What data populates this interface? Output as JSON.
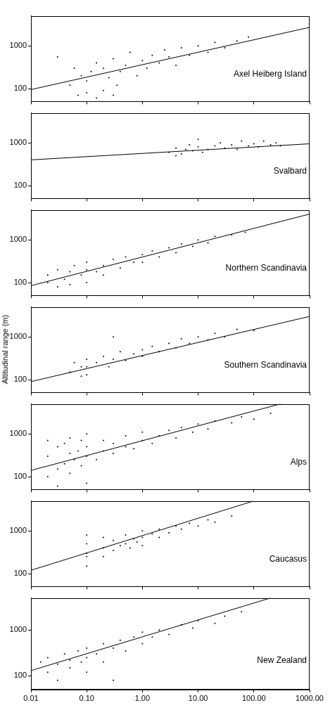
{
  "chart_data": [
    {
      "type": "scatter",
      "annotations": [
        "Axel Heiberg Island"
      ],
      "log": true,
      "grid": false,
      "tick_labels": "y",
      "xlim": [
        0.01,
        1000
      ],
      "ylim": [
        50,
        5000
      ],
      "xticks": [
        0.01,
        {
          "value": 0.1,
          "label": "0.10"
        },
        {
          "value": 1,
          "label": "1.00"
        },
        {
          "value": 10,
          "label": "10.00"
        },
        {
          "value": 100,
          "label": "100.00"
        },
        {
          "value": 1000,
          "label": "1000.00"
        }
      ],
      "yticks": [
        100,
        1000
      ],
      "series": [
        {
          "type": "scatter",
          "marker": "dot",
          "color": "#000000",
          "x": [
            0.03,
            0.05,
            0.06,
            0.08,
            0.1,
            0.1,
            0.12,
            0.15,
            0.2,
            0.2,
            0.25,
            0.3,
            0.35,
            0.4,
            0.5,
            0.6,
            0.8,
            1,
            1.2,
            1.5,
            2,
            2.5,
            3,
            4,
            5,
            7,
            10,
            15,
            20,
            30,
            50,
            80,
            0.07,
            0.3,
            0.15
          ],
          "values": [
            550,
            120,
            300,
            200,
            80,
            150,
            250,
            400,
            90,
            300,
            180,
            500,
            120,
            250,
            350,
            700,
            200,
            450,
            300,
            600,
            400,
            800,
            550,
            350,
            900,
            600,
            1000,
            700,
            1200,
            900,
            1300,
            1600,
            70,
            70,
            60
          ]
        },
        {
          "type": "line",
          "line_style": "solid",
          "color": "#000000",
          "x": [
            0.01,
            1000
          ],
          "values": [
            95,
            2700
          ]
        }
      ]
    },
    {
      "type": "scatter",
      "annotations": [
        "Svalbard"
      ],
      "log": true,
      "grid": false,
      "tick_labels": "y",
      "xlim": [
        0.01,
        1000
      ],
      "ylim": [
        50,
        5000
      ],
      "xticks": [
        0.01,
        {
          "value": 0.1,
          "label": "0.10"
        },
        {
          "value": 1,
          "label": "1.00"
        },
        {
          "value": 10,
          "label": "10.00"
        },
        {
          "value": 100,
          "label": "100.00"
        },
        {
          "value": 1000,
          "label": "1000.00"
        }
      ],
      "yticks": [
        100,
        1000
      ],
      "series": [
        {
          "type": "scatter",
          "marker": "dot",
          "color": "#000000",
          "x": [
            3,
            4,
            5,
            6,
            7,
            8,
            10,
            12,
            15,
            20,
            25,
            30,
            40,
            50,
            60,
            80,
            100,
            120,
            150,
            200,
            250,
            300,
            4,
            10
          ],
          "values": [
            600,
            750,
            550,
            700,
            900,
            650,
            800,
            600,
            700,
            850,
            1000,
            750,
            900,
            700,
            1100,
            850,
            950,
            800,
            1100,
            900,
            1000,
            850,
            500,
            1200
          ]
        },
        {
          "type": "line",
          "line_style": "solid",
          "color": "#000000",
          "x": [
            0.01,
            1000
          ],
          "values": [
            400,
            950
          ]
        }
      ]
    },
    {
      "type": "scatter",
      "annotations": [
        "Northern Scandinavia"
      ],
      "log": true,
      "grid": false,
      "tick_labels": "y",
      "xlim": [
        0.01,
        1000
      ],
      "ylim": [
        50,
        5000
      ],
      "xticks": [
        0.01,
        {
          "value": 0.1,
          "label": "0.10"
        },
        {
          "value": 1,
          "label": "1.00"
        },
        {
          "value": 10,
          "label": "10.00"
        },
        {
          "value": 100,
          "label": "100.00"
        },
        {
          "value": 1000,
          "label": "1000.00"
        }
      ],
      "yticks": [
        100,
        1000
      ],
      "series": [
        {
          "type": "scatter",
          "marker": "dot",
          "color": "#000000",
          "x": [
            0.02,
            0.02,
            0.03,
            0.03,
            0.04,
            0.05,
            0.05,
            0.06,
            0.08,
            0.1,
            0.1,
            0.1,
            0.15,
            0.2,
            0.2,
            0.3,
            0.4,
            0.5,
            0.7,
            1,
            1,
            1.5,
            2,
            3,
            4,
            5,
            8,
            10,
            15,
            20,
            40,
            70
          ],
          "values": [
            100,
            150,
            80,
            200,
            120,
            90,
            180,
            250,
            150,
            100,
            200,
            300,
            180,
            250,
            150,
            350,
            220,
            400,
            300,
            450,
            300,
            550,
            400,
            650,
            500,
            800,
            700,
            1000,
            850,
            1200,
            1300,
            1500
          ]
        },
        {
          "type": "line",
          "line_style": "solid",
          "color": "#000000",
          "x": [
            0.01,
            1000
          ],
          "values": [
            85,
            4000
          ]
        }
      ]
    },
    {
      "type": "scatter",
      "annotations": [
        "Southern Scandinavia"
      ],
      "y_label": "Altitudinal range (m)",
      "log": true,
      "grid": false,
      "tick_labels": "y",
      "xlim": [
        0.01,
        1000
      ],
      "ylim": [
        50,
        5000
      ],
      "xticks": [
        0.01,
        {
          "value": 0.1,
          "label": "0.10"
        },
        {
          "value": 1,
          "label": "1.00"
        },
        {
          "value": 10,
          "label": "10.00"
        },
        {
          "value": 100,
          "label": "100.00"
        },
        {
          "value": 1000,
          "label": "1000.00"
        }
      ],
      "yticks": [
        100,
        1000
      ],
      "series": [
        {
          "type": "scatter",
          "marker": "dot",
          "color": "#000000",
          "x": [
            0.05,
            0.06,
            0.08,
            0.1,
            0.1,
            0.1,
            0.15,
            0.2,
            0.25,
            0.3,
            0.4,
            0.5,
            0.7,
            1,
            1,
            1.5,
            2,
            3,
            4,
            5,
            7,
            10,
            15,
            20,
            30,
            50,
            100,
            0.3,
            0.08
          ],
          "values": [
            150,
            250,
            120,
            200,
            300,
            130,
            250,
            350,
            200,
            300,
            450,
            280,
            400,
            500,
            350,
            600,
            450,
            700,
            550,
            900,
            700,
            1000,
            850,
            1200,
            1000,
            1500,
            1400,
            1000,
            200
          ]
        },
        {
          "type": "line",
          "line_style": "solid",
          "color": "#000000",
          "x": [
            0.01,
            1000
          ],
          "values": [
            90,
            3000
          ]
        }
      ]
    },
    {
      "type": "scatter",
      "annotations": [
        "Alps"
      ],
      "log": true,
      "grid": false,
      "tick_labels": "y",
      "xlim": [
        0.01,
        1000
      ],
      "ylim": [
        50,
        5000
      ],
      "xticks": [
        0.01,
        {
          "value": 0.1,
          "label": "0.10"
        },
        {
          "value": 1,
          "label": "1.00"
        },
        {
          "value": 10,
          "label": "10.00"
        },
        {
          "value": 100,
          "label": "100.00"
        },
        {
          "value": 1000,
          "label": "1000.00"
        }
      ],
      "yticks": [
        100,
        1000
      ],
      "series": [
        {
          "type": "scatter",
          "marker": "dot",
          "color": "#000000",
          "x": [
            0.02,
            0.02,
            0.02,
            0.03,
            0.03,
            0.04,
            0.04,
            0.05,
            0.05,
            0.05,
            0.06,
            0.07,
            0.08,
            0.08,
            0.1,
            0.1,
            0.1,
            0.15,
            0.2,
            0.2,
            0.3,
            0.3,
            0.5,
            0.5,
            0.7,
            1,
            1,
            1.5,
            2,
            3,
            4,
            5,
            8,
            10,
            15,
            20,
            40,
            60,
            100,
            200,
            0.03,
            0.1
          ],
          "values": [
            100,
            300,
            700,
            150,
            500,
            200,
            600,
            120,
            350,
            800,
            250,
            400,
            180,
            700,
            300,
            500,
            1000,
            250,
            400,
            700,
            350,
            600,
            500,
            900,
            450,
            700,
            1100,
            600,
            900,
            1200,
            800,
            1400,
            1100,
            1700,
            1300,
            2000,
            1800,
            2500,
            2200,
            3000,
            60,
            70
          ]
        },
        {
          "type": "line",
          "line_style": "solid",
          "color": "#000000",
          "x": [
            0.01,
            300
          ],
          "values": [
            140,
            5000
          ]
        }
      ]
    },
    {
      "type": "scatter",
      "annotations": [
        "Caucasus"
      ],
      "log": true,
      "grid": false,
      "tick_labels": "y",
      "xlim": [
        0.01,
        1000
      ],
      "ylim": [
        50,
        5000
      ],
      "xticks": [
        0.01,
        {
          "value": 0.1,
          "label": "0.10"
        },
        {
          "value": 1,
          "label": "1.00"
        },
        {
          "value": 10,
          "label": "10.00"
        },
        {
          "value": 100,
          "label": "100.00"
        },
        {
          "value": 1000,
          "label": "1000.00"
        }
      ],
      "yticks": [
        100,
        1000
      ],
      "series": [
        {
          "type": "scatter",
          "marker": "dot",
          "color": "#000000",
          "x": [
            0.1,
            0.1,
            0.1,
            0.1,
            0.1,
            0.2,
            0.2,
            0.2,
            0.3,
            0.3,
            0.4,
            0.5,
            0.5,
            0.6,
            0.7,
            0.8,
            1,
            1,
            1.5,
            2,
            2,
            3,
            4,
            5,
            7,
            10,
            15,
            20,
            40,
            1
          ],
          "values": [
            150,
            300,
            500,
            800,
            250,
            400,
            700,
            250,
            350,
            600,
            450,
            500,
            800,
            400,
            650,
            550,
            700,
            1000,
            850,
            1100,
            700,
            900,
            1300,
            1100,
            1500,
            1300,
            1800,
            1600,
            2200,
            450
          ]
        },
        {
          "type": "line",
          "line_style": "solid",
          "color": "#000000",
          "x": [
            0.01,
            100
          ],
          "values": [
            120,
            5000
          ]
        }
      ]
    },
    {
      "type": "scatter",
      "annotations": [
        "New Zealand"
      ],
      "log": true,
      "grid": false,
      "xlim": [
        0.01,
        1000
      ],
      "ylim": [
        50,
        5000
      ],
      "xticks": [
        0.01,
        {
          "value": 0.1,
          "label": "0.10"
        },
        {
          "value": 1,
          "label": "1.00"
        },
        {
          "value": 10,
          "label": "10.00"
        },
        {
          "value": 100,
          "label": "100.00"
        },
        {
          "value": 1000,
          "label": "1000.00"
        }
      ],
      "yticks": [
        100,
        1000
      ],
      "series": [
        {
          "type": "scatter",
          "marker": "dot",
          "color": "#000000",
          "x": [
            0.01,
            0.01,
            0.015,
            0.02,
            0.02,
            0.03,
            0.03,
            0.04,
            0.05,
            0.05,
            0.07,
            0.08,
            0.1,
            0.1,
            0.1,
            0.15,
            0.2,
            0.2,
            0.3,
            0.4,
            0.5,
            0.7,
            1,
            1,
            1.5,
            2,
            3,
            5,
            8,
            10,
            20,
            30,
            60,
            0.3
          ],
          "values": [
            100,
            150,
            200,
            120,
            250,
            180,
            80,
            300,
            150,
            220,
            350,
            200,
            120,
            400,
            250,
            300,
            500,
            200,
            400,
            600,
            350,
            700,
            500,
            900,
            700,
            1000,
            800,
            1300,
            1100,
            1600,
            1400,
            2000,
            2500,
            80
          ]
        },
        {
          "type": "line",
          "line_style": "solid",
          "color": "#000000",
          "x": [
            0.01,
            200
          ],
          "values": [
            130,
            5000
          ]
        }
      ]
    }
  ]
}
